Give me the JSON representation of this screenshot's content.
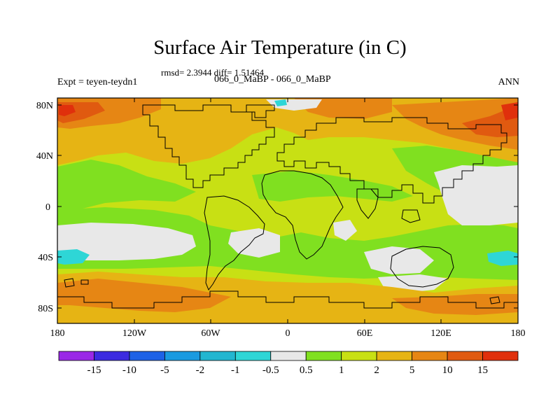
{
  "title": "Surface Air Temperature (in C)",
  "stats_line": "rmsd= 2.3944 diff= 1.51464",
  "expt_line": "Expt = teyen-teydn1",
  "case_line": "066_0_MaBP - 066_0_MaBP",
  "season": "ANN",
  "x_ticks": [
    "180",
    "120W",
    "60W",
    "0",
    "60E",
    "120E",
    "180"
  ],
  "y_ticks": [
    "80N",
    "40N",
    "0",
    "40S",
    "80S"
  ],
  "colorbar": {
    "labels": [
      "-15",
      "-10",
      "-5",
      "-2",
      "-1",
      "-0.5",
      "0.5",
      "1",
      "2",
      "5",
      "10",
      "15"
    ],
    "colors": [
      "#9a28e6",
      "#3c2be0",
      "#1e62e6",
      "#1a9ae0",
      "#22b6d0",
      "#2ed6d6",
      "#e8e8e8",
      "#80e020",
      "#c8e014",
      "#e6b414",
      "#e68614",
      "#e05a10",
      "#e0300c"
    ]
  },
  "field_colors": {
    "white": "#e8e8e8",
    "cyan": "#2ed6d6",
    "green": "#80e020",
    "yellowgreen": "#c8e014",
    "yellow": "#e6b414",
    "orange": "#e68614",
    "darkorange": "#e05a10",
    "red": "#e0300c"
  }
}
